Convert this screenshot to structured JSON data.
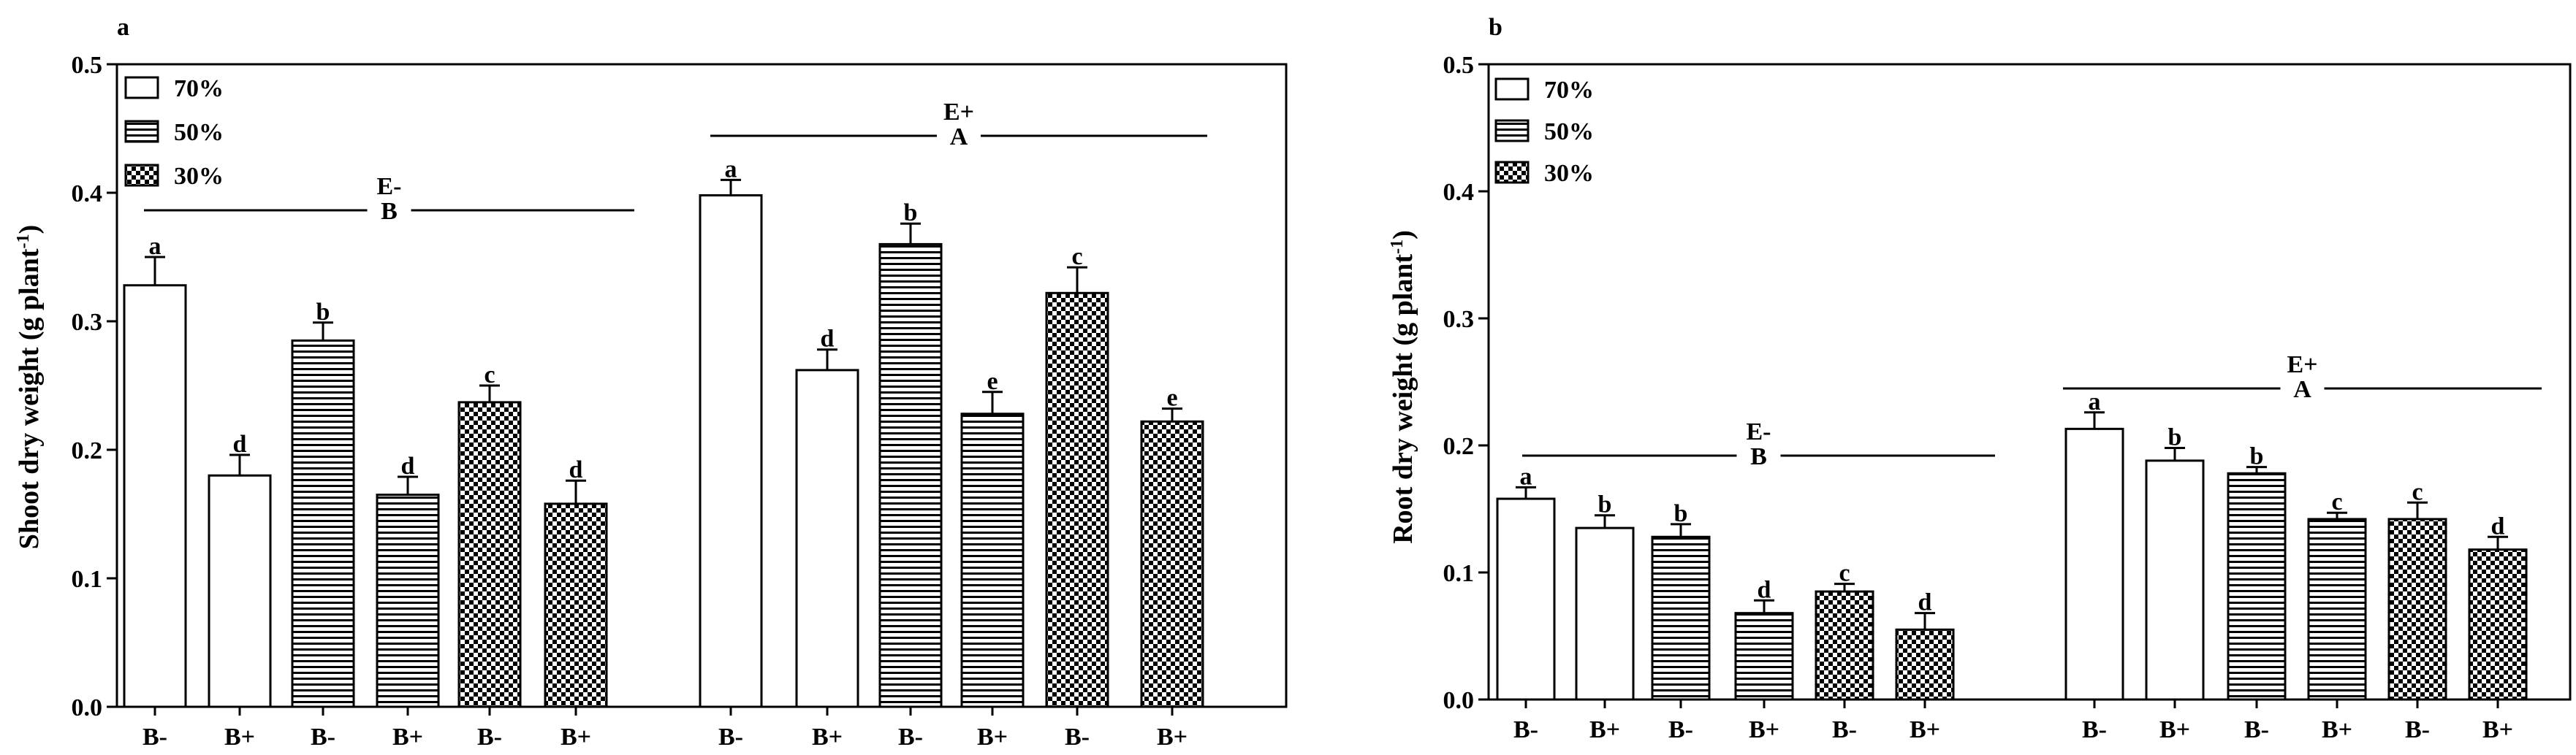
{
  "chart_data": [
    {
      "panel_label": "a",
      "type": "bar",
      "ylabel_main": "Shoot dry weight (g plant",
      "ylabel_sup": "-1",
      "ylabel_close": ")",
      "ylim": [
        0,
        0.5
      ],
      "yticks": [
        "0.0",
        "0.1",
        "0.2",
        "0.3",
        "0.4",
        "0.5"
      ],
      "legend": [
        {
          "label": "70%",
          "pattern": "open"
        },
        {
          "label": "50%",
          "pattern": "hlines"
        },
        {
          "label": "30%",
          "pattern": "check"
        }
      ],
      "groups": [
        {
          "label_top": "E-",
          "label_bottom": "B",
          "bars": [
            {
              "x": "B-",
              "moisture": "70%",
              "value": 0.328,
              "err": 0.022,
              "letter": "a"
            },
            {
              "x": "B+",
              "moisture": "70%",
              "value": 0.18,
              "err": 0.016,
              "letter": "d"
            },
            {
              "x": "B-",
              "moisture": "50%",
              "value": 0.285,
              "err": 0.014,
              "letter": "b"
            },
            {
              "x": "B+",
              "moisture": "50%",
              "value": 0.165,
              "err": 0.014,
              "letter": "d"
            },
            {
              "x": "B-",
              "moisture": "30%",
              "value": 0.237,
              "err": 0.013,
              "letter": "c"
            },
            {
              "x": "B+",
              "moisture": "30%",
              "value": 0.158,
              "err": 0.018,
              "letter": "d"
            }
          ]
        },
        {
          "label_top": "E+",
          "label_bottom": "A",
          "bars": [
            {
              "x": "B-",
              "moisture": "70%",
              "value": 0.398,
              "err": 0.012,
              "letter": "a"
            },
            {
              "x": "B+",
              "moisture": "70%",
              "value": 0.262,
              "err": 0.016,
              "letter": "d"
            },
            {
              "x": "B-",
              "moisture": "50%",
              "value": 0.36,
              "err": 0.016,
              "letter": "b"
            },
            {
              "x": "B+",
              "moisture": "50%",
              "value": 0.228,
              "err": 0.017,
              "letter": "e"
            },
            {
              "x": "B-",
              "moisture": "30%",
              "value": 0.322,
              "err": 0.02,
              "letter": "c"
            },
            {
              "x": "B+",
              "moisture": "30%",
              "value": 0.222,
              "err": 0.01,
              "letter": "e"
            }
          ]
        }
      ]
    },
    {
      "panel_label": "b",
      "type": "bar",
      "ylabel_main": "Root dry weight (g plant",
      "ylabel_sup": "-1",
      "ylabel_close": ")",
      "ylim": [
        0,
        0.5
      ],
      "yticks": [
        "0.0",
        "0.1",
        "0.2",
        "0.3",
        "0.4",
        "0.5"
      ],
      "legend": [
        {
          "label": "70%",
          "pattern": "open"
        },
        {
          "label": "50%",
          "pattern": "hlines"
        },
        {
          "label": "30%",
          "pattern": "check"
        }
      ],
      "groups": [
        {
          "label_top": "E-",
          "label_bottom": "B",
          "bars": [
            {
              "x": "B-",
              "moisture": "70%",
              "value": 0.158,
              "err": 0.009,
              "letter": "a"
            },
            {
              "x": "B+",
              "moisture": "70%",
              "value": 0.135,
              "err": 0.01,
              "letter": "b"
            },
            {
              "x": "B-",
              "moisture": "50%",
              "value": 0.128,
              "err": 0.01,
              "letter": "b"
            },
            {
              "x": "B+",
              "moisture": "50%",
              "value": 0.068,
              "err": 0.01,
              "letter": "d"
            },
            {
              "x": "B-",
              "moisture": "30%",
              "value": 0.085,
              "err": 0.006,
              "letter": "c"
            },
            {
              "x": "B+",
              "moisture": "30%",
              "value": 0.055,
              "err": 0.013,
              "letter": "d"
            }
          ]
        },
        {
          "label_top": "E+",
          "label_bottom": "A",
          "bars": [
            {
              "x": "B-",
              "moisture": "70%",
              "value": 0.213,
              "err": 0.013,
              "letter": "a"
            },
            {
              "x": "B+",
              "moisture": "70%",
              "value": 0.188,
              "err": 0.01,
              "letter": "b"
            },
            {
              "x": "B-",
              "moisture": "50%",
              "value": 0.178,
              "err": 0.005,
              "letter": "b"
            },
            {
              "x": "B+",
              "moisture": "50%",
              "value": 0.142,
              "err": 0.005,
              "letter": "c"
            },
            {
              "x": "B-",
              "moisture": "30%",
              "value": 0.142,
              "err": 0.013,
              "letter": "c"
            },
            {
              "x": "B+",
              "moisture": "30%",
              "value": 0.118,
              "err": 0.01,
              "letter": "d"
            }
          ]
        }
      ]
    }
  ]
}
